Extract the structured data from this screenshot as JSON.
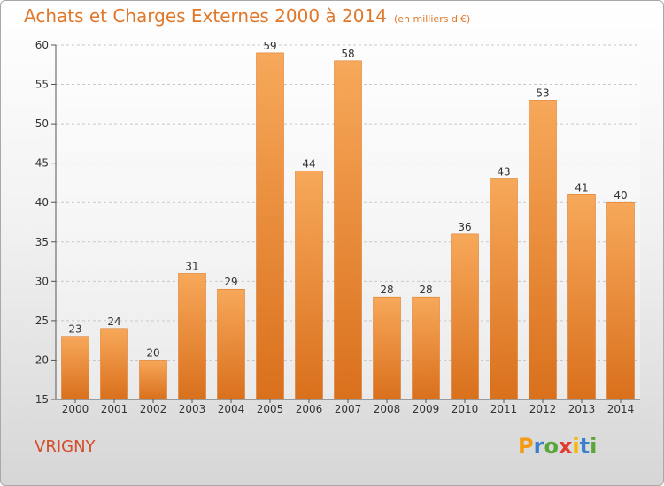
{
  "title": "Achats et Charges Externes 2000 à 2014",
  "subtitle": "(en milliers d'€)",
  "city": "VRIGNY",
  "brand": {
    "letters": [
      "P",
      "r",
      "o",
      "x",
      "i",
      "t",
      "i"
    ],
    "colors": [
      "#f39c12",
      "#3a7fcb",
      "#5aa63a",
      "#e23b2e",
      "#f5b800",
      "#3a7fcb",
      "#5aa63a"
    ]
  },
  "colors": {
    "bar": "#f08a2c",
    "bar_light": "#f7a85a",
    "bar_dark": "#d9701c",
    "title": "#e0782a",
    "city": "#d44c2c"
  },
  "chart_data": {
    "type": "bar",
    "title": "Achats et Charges Externes 2000 à 2014",
    "subtitle": "(en milliers d'€)",
    "categories": [
      "2000",
      "2001",
      "2002",
      "2003",
      "2004",
      "2005",
      "2006",
      "2007",
      "2008",
      "2009",
      "2010",
      "2011",
      "2012",
      "2013",
      "2014"
    ],
    "values": [
      23,
      24,
      20,
      31,
      29,
      59,
      44,
      58,
      28,
      28,
      36,
      43,
      53,
      41,
      40
    ],
    "ylim": [
      15,
      60
    ],
    "yticks": [
      15,
      20,
      25,
      30,
      35,
      40,
      45,
      50,
      55,
      60
    ],
    "grid": true,
    "xlabel": "",
    "ylabel": ""
  }
}
